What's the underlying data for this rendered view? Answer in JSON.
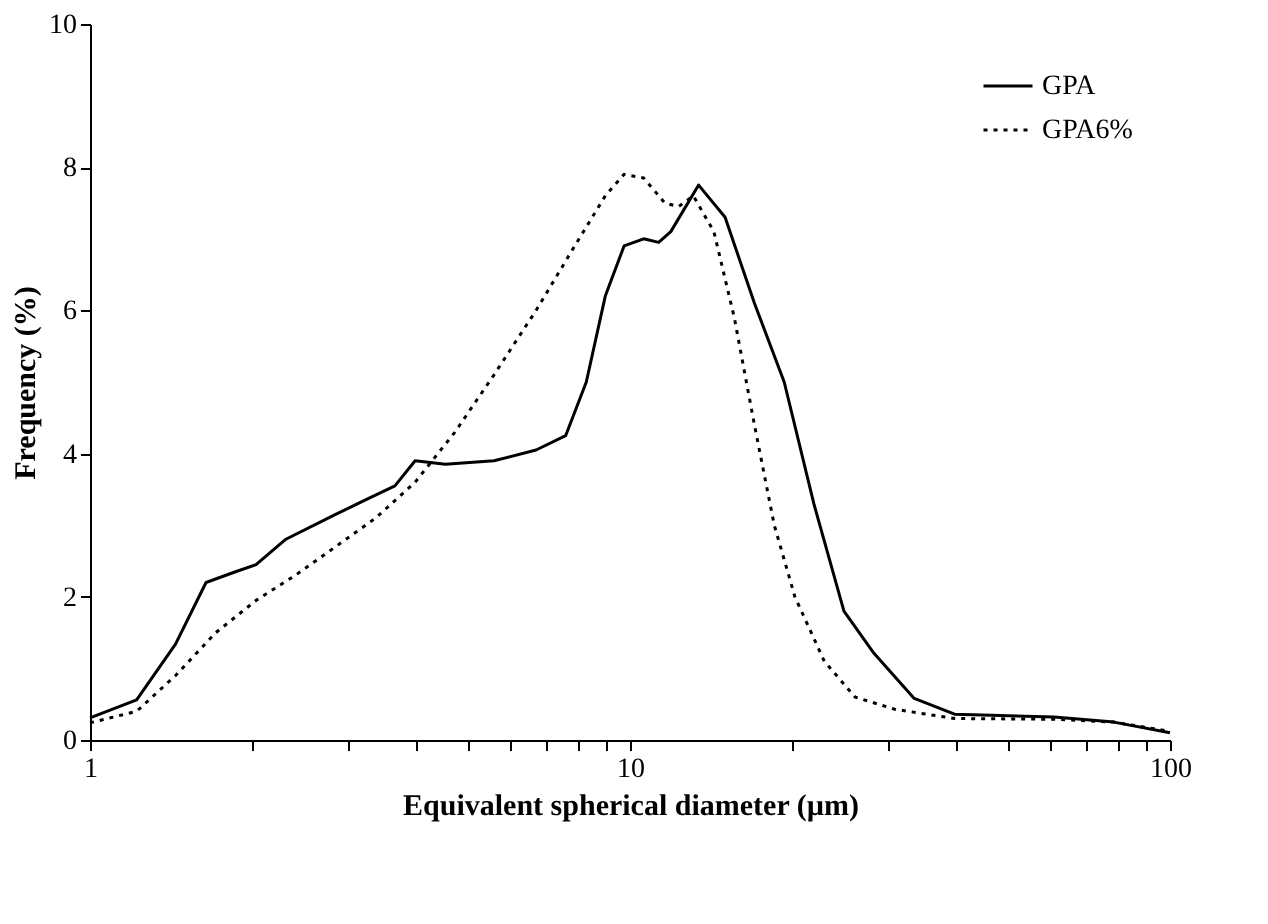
{
  "chart_data": {
    "type": "line",
    "xlabel": "Equivalent spherical diameter (µm)",
    "ylabel": "Frequency (%)",
    "log": "x",
    "xlim": [
      1,
      100
    ],
    "xticks": [
      1,
      {
        "value": 2,
        "label": null
      },
      {
        "value": 3,
        "label": null
      },
      {
        "value": 4,
        "label": null
      },
      {
        "value": 5,
        "label": null
      },
      {
        "value": 6,
        "label": null
      },
      {
        "value": 7,
        "label": null
      },
      {
        "value": 8,
        "label": null
      },
      {
        "value": 9,
        "label": null
      },
      10,
      {
        "value": 20,
        "label": null
      },
      {
        "value": 30,
        "label": null
      },
      {
        "value": 40,
        "label": null
      },
      {
        "value": 50,
        "label": null
      },
      {
        "value": 60,
        "label": null
      },
      {
        "value": 70,
        "label": null
      },
      {
        "value": 80,
        "label": null
      },
      {
        "value": 90,
        "label": null
      },
      100
    ],
    "ylim": [
      0,
      10
    ],
    "yticks": [
      0,
      2,
      4,
      6,
      8,
      10
    ],
    "grid": false,
    "legend": "top right",
    "marker": "none",
    "series": [
      {
        "name": "GPA",
        "color": "#000000",
        "line_style": "solid",
        "x": [
          1,
          1.22,
          1.44,
          1.64,
          1.86,
          2.03,
          2.3,
          2.85,
          3.23,
          3.67,
          4.0,
          4.55,
          5.6,
          6.7,
          7.6,
          8.3,
          9.0,
          9.75,
          10.6,
          11.3,
          11.9,
          13.4,
          15.0,
          17.0,
          19.3,
          21.9,
          24.9,
          28.3,
          33.6,
          39.9,
          61,
          78.7,
          100
        ],
        "values": [
          0.31,
          0.56,
          1.34,
          2.2,
          2.35,
          2.45,
          2.8,
          3.15,
          3.35,
          3.55,
          3.9,
          3.85,
          3.9,
          4.05,
          4.25,
          5.0,
          6.2,
          6.9,
          7.0,
          6.95,
          7.1,
          7.75,
          7.3,
          6.1,
          5.0,
          3.3,
          1.8,
          1.21,
          0.58,
          0.36,
          0.32,
          0.25,
          0.1
        ]
      },
      {
        "name": "GPA6%",
        "color": "#000000",
        "line_style": "dotted",
        "x": [
          1,
          1.22,
          1.44,
          1.71,
          2.03,
          2.4,
          2.85,
          3.38,
          4.0,
          4.74,
          5.6,
          6.7,
          7.9,
          9.0,
          9.75,
          10.6,
          11.6,
          12.3,
          13.1,
          14.3,
          15.6,
          17.0,
          18.5,
          20.2,
          22.9,
          26.1,
          30.9,
          39.9,
          61,
          78.7,
          100
        ],
        "values": [
          0.24,
          0.4,
          0.9,
          1.5,
          1.95,
          2.3,
          2.7,
          3.1,
          3.6,
          4.3,
          5.1,
          6.0,
          6.9,
          7.6,
          7.9,
          7.85,
          7.5,
          7.45,
          7.6,
          7.1,
          5.9,
          4.4,
          3.0,
          2.0,
          1.1,
          0.6,
          0.43,
          0.3,
          0.29,
          0.25,
          0.12
        ]
      }
    ]
  }
}
